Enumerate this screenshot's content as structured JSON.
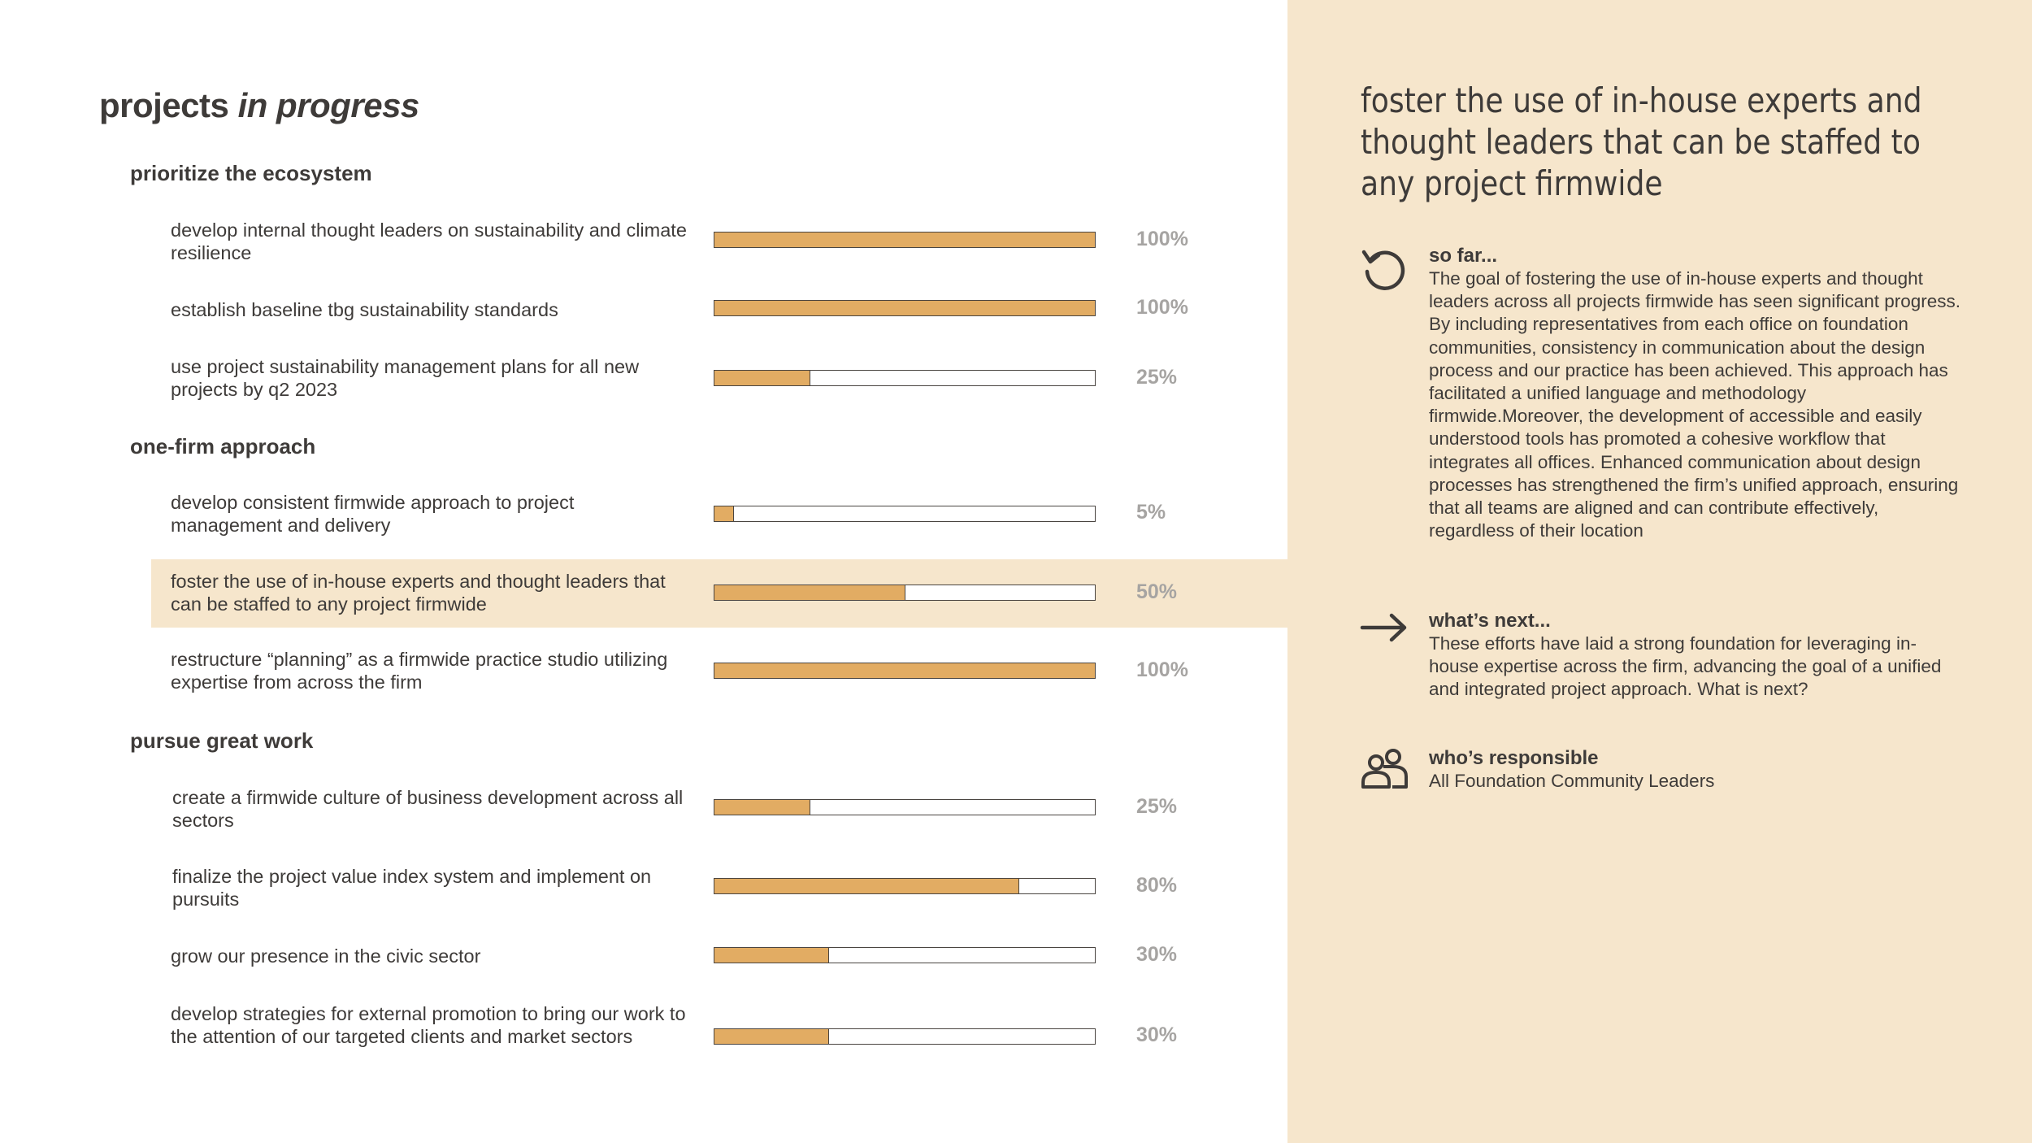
{
  "page": {
    "title_main": "projects",
    "title_emph": "in progress"
  },
  "colors": {
    "bar_fill": "#e2ac63",
    "highlight_bg": "#f6e6cc",
    "percent_text": "#a6a4a2",
    "text": "#3e3b39"
  },
  "sections": [
    {
      "name": "prioritize the ecosystem",
      "items": [
        {
          "label": "develop internal thought leaders on sustainability and climate resilience",
          "progress": 100,
          "percent_label": "100%"
        },
        {
          "label": "establish baseline tbg sustainability standards",
          "progress": 100,
          "percent_label": "100%"
        },
        {
          "label": "use project sustainability management plans for all new projects by q2 2023",
          "progress": 25,
          "percent_label": "25%"
        }
      ]
    },
    {
      "name": "one-firm approach",
      "items": [
        {
          "label": "develop consistent firmwide approach to project management and delivery",
          "progress": 5,
          "percent_label": "5%"
        },
        {
          "label": "foster the use of in-house experts and thought leaders that can be staffed to any project firmwide",
          "progress": 50,
          "percent_label": "50%",
          "selected": true
        },
        {
          "label": "restructure “planning” as a firmwide practice studio utilizing expertise from across the firm",
          "progress": 100,
          "percent_label": "100%"
        }
      ]
    },
    {
      "name": "pursue great work",
      "items": [
        {
          "label": "create a firmwide culture of business development across all sectors",
          "progress": 25,
          "percent_label": "25%"
        },
        {
          "label": "finalize the project value index system and implement on pursuits",
          "progress": 80,
          "percent_label": "80%"
        },
        {
          "label": "grow our presence in the civic sector",
          "progress": 30,
          "percent_label": "30%"
        },
        {
          "label": "develop strategies for external promotion to bring our work to the attention of our targeted clients and market sectors",
          "progress": 30,
          "percent_label": "30%"
        }
      ]
    }
  ],
  "detail": {
    "title": "foster the use of in-house experts and thought leaders that can be staffed to any project firmwide",
    "so_far": {
      "icon": "refresh-icon",
      "heading": "so far...",
      "text": "The goal of fostering the use of in-house experts and thought leaders across all projects firmwide has seen significant progress. By including representatives from each office on foundation communities, consistency in communication about the design process and our practice has been achieved. This approach has facilitated a unified language and methodology firmwide.Moreover, the development of accessible and easily understood tools has promoted a cohesive workflow that integrates all offices. Enhanced communication about design processes has strengthened the firm’s unified approach, ensuring that all teams are aligned and can contribute effectively, regardless of their location"
    },
    "whats_next": {
      "icon": "arrow-right-icon",
      "heading": "what’s next...",
      "text": "These efforts have laid a strong foundation for leveraging in-house expertise across the firm, advancing the goal of a unified and integrated project approach. What is next?"
    },
    "responsible": {
      "icon": "people-icon",
      "heading": "who’s responsible",
      "text": "All Foundation Community Leaders"
    }
  }
}
